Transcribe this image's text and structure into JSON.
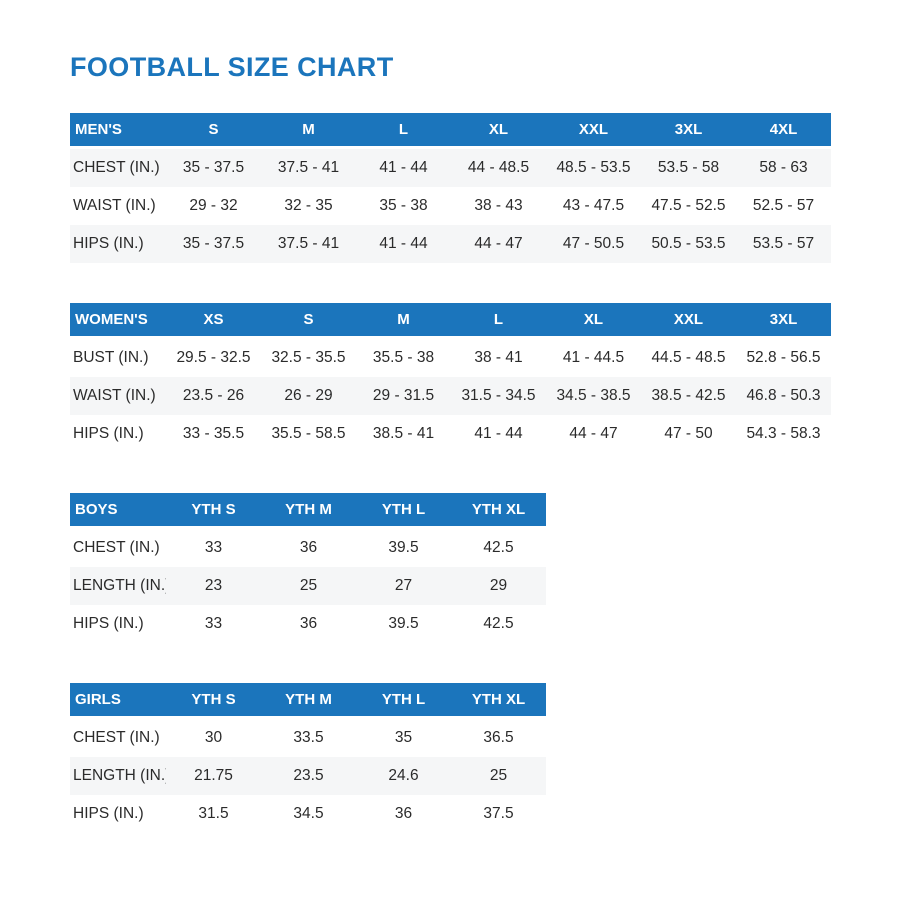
{
  "title": "FOOTBALL SIZE CHART",
  "colors": {
    "accent_blue": "#1b75bc",
    "row_shade": "#f5f6f7",
    "body_text": "#2b2b2b",
    "header_text": "#ffffff",
    "background": "#ffffff"
  },
  "chart_data": [
    {
      "type": "table",
      "group": "MEN'S",
      "columns": [
        "S",
        "M",
        "L",
        "XL",
        "XXL",
        "3XL",
        "4XL"
      ],
      "rows": [
        {
          "label": "CHEST (IN.)",
          "values": [
            "35 - 37.5",
            "37.5 - 41",
            "41 - 44",
            "44 - 48.5",
            "48.5 - 53.5",
            "53.5 - 58",
            "58 - 63"
          ]
        },
        {
          "label": "WAIST (IN.)",
          "values": [
            "29 - 32",
            "32 - 35",
            "35 - 38",
            "38 - 43",
            "43 - 47.5",
            "47.5 - 52.5",
            "52.5 - 57"
          ]
        },
        {
          "label": "HIPS (IN.)",
          "values": [
            "35 - 37.5",
            "37.5 - 41",
            "41 - 44",
            "44 - 47",
            "47 - 50.5",
            "50.5 - 53.5",
            "53.5 - 57"
          ]
        }
      ],
      "shaded_rows": "even"
    },
    {
      "type": "table",
      "group": "WOMEN'S",
      "columns": [
        "XS",
        "S",
        "M",
        "L",
        "XL",
        "XXL",
        "3XL"
      ],
      "rows": [
        {
          "label": "BUST (IN.)",
          "values": [
            "29.5 - 32.5",
            "32.5 - 35.5",
            "35.5 - 38",
            "38 - 41",
            "41 - 44.5",
            "44.5 - 48.5",
            "52.8 - 56.5"
          ]
        },
        {
          "label": "WAIST (IN.)",
          "values": [
            "23.5 - 26",
            "26 - 29",
            "29 - 31.5",
            "31.5 - 34.5",
            "34.5 - 38.5",
            "38.5 - 42.5",
            "46.8 - 50.3"
          ]
        },
        {
          "label": "HIPS (IN.)",
          "values": [
            "33 - 35.5",
            "35.5 - 58.5",
            "38.5 - 41",
            "41 - 44",
            "44 - 47",
            "47 - 50",
            "54.3 - 58.3"
          ]
        }
      ],
      "shaded_rows": "odd"
    },
    {
      "type": "table",
      "group": "BOYS",
      "columns": [
        "YTH S",
        "YTH M",
        "YTH L",
        "YTH XL"
      ],
      "rows": [
        {
          "label": "CHEST (IN.)",
          "values": [
            "33",
            "36",
            "39.5",
            "42.5"
          ]
        },
        {
          "label": "LENGTH (IN.)",
          "values": [
            "23",
            "25",
            "27",
            "29"
          ]
        },
        {
          "label": "HIPS (IN.)",
          "values": [
            "33",
            "36",
            "39.5",
            "42.5"
          ]
        }
      ],
      "shaded_rows": "odd"
    },
    {
      "type": "table",
      "group": "GIRLS",
      "columns": [
        "YTH S",
        "YTH M",
        "YTH L",
        "YTH XL"
      ],
      "rows": [
        {
          "label": "CHEST (IN.)",
          "values": [
            "30",
            "33.5",
            "35",
            "36.5"
          ]
        },
        {
          "label": "LENGTH (IN.)",
          "values": [
            "21.75",
            "23.5",
            "24.6",
            "25"
          ]
        },
        {
          "label": "HIPS (IN.)",
          "values": [
            "31.5",
            "34.5",
            "36",
            "37.5"
          ]
        }
      ],
      "shaded_rows": "odd"
    }
  ]
}
